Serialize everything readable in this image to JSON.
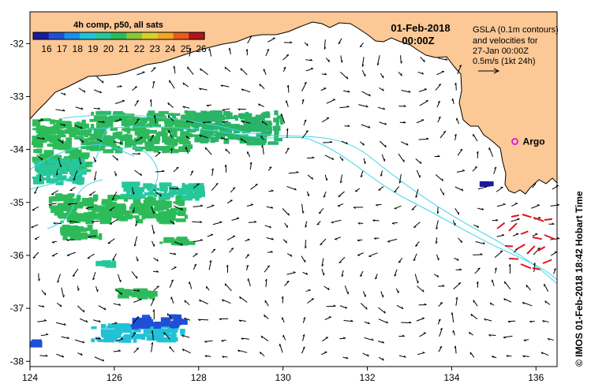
{
  "map": {
    "date": "01-Feb-2018",
    "time": "00:00Z",
    "colorbar_title": "4h comp, p50, all sats",
    "colorbar_ticks": [
      "16",
      "17",
      "18",
      "19",
      "20",
      "21",
      "22",
      "23",
      "24",
      "25",
      "26"
    ],
    "colorbar_colors": [
      "#1a1aa0",
      "#1f4fd6",
      "#1c8fe6",
      "#22c2d6",
      "#26c79a",
      "#2dbb5a",
      "#8ac83a",
      "#d6d228",
      "#f2a523",
      "#e85a1e",
      "#b5141c"
    ],
    "info_lines": [
      "GSLA (0.1m contours)",
      "and velocities for",
      "27-Jan 00:00Z",
      "0.5m/s (1kt 24h)"
    ],
    "argo_label": "Argo",
    "side_label": "© IMOS 01-Feb-2018 18:42 Hobart Time",
    "x_axis": {
      "range": [
        124,
        136.5
      ],
      "ticks": [
        124,
        126,
        128,
        130,
        132,
        134,
        136
      ]
    },
    "y_axis": {
      "range": [
        -38.1,
        -31.4
      ],
      "ticks": [
        -32,
        -33,
        -34,
        -35,
        -36,
        -37,
        -38
      ]
    },
    "argo_position": {
      "lon": 135.5,
      "lat": -33.85
    },
    "land_color": "#fbc896",
    "contour_color": "#3fd5e8",
    "fast_current_color": "#e0141c",
    "argo_color": "#e020e0"
  }
}
